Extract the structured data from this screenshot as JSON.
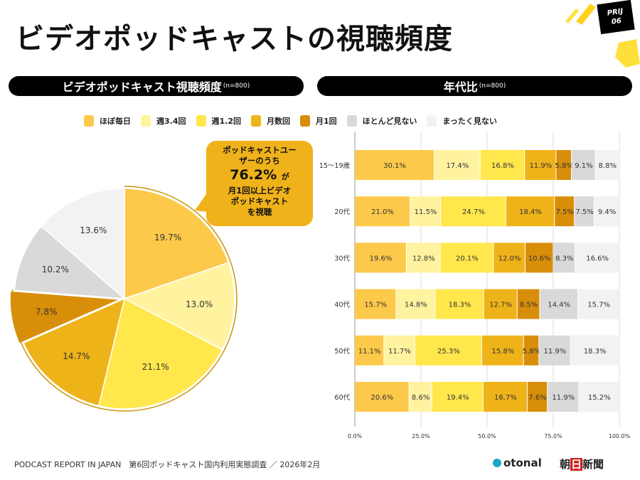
{
  "header": {
    "title": "ビデオポッドキャストの視聴頻度",
    "badge_line1": "PRIJ",
    "badge_line2": "06"
  },
  "left_panel": {
    "title": "ビデオポッドキャスト視聴頻度",
    "n": "(n=800)"
  },
  "right_panel": {
    "title": "年代比",
    "n": "(n=800)"
  },
  "legend": [
    {
      "label": "ほぼ毎日",
      "color": "#FCC94A"
    },
    {
      "label": "週3.4回",
      "color": "#FFF3A0"
    },
    {
      "label": "週1.2回",
      "color": "#FFE74C"
    },
    {
      "label": "月数回",
      "color": "#EFB31A"
    },
    {
      "label": "月1回",
      "color": "#D98E0A"
    },
    {
      "label": "ほとんど見ない",
      "color": "#D9D9D9"
    },
    {
      "label": "まったく見ない",
      "color": "#F2F2F2"
    }
  ],
  "callout": {
    "line1": "ポッドキャストユー",
    "line2": "ザーのうち",
    "value": "76.2%",
    "particle": "が",
    "line3": "月1回以上ビデオ",
    "line4": "ポッドキャスト",
    "line5": "を視聴"
  },
  "chart_data": [
    {
      "type": "pie",
      "categories": [
        "ほぼ毎日",
        "週3.4回",
        "週1.2回",
        "月数回",
        "月1回",
        "ほとんど見ない",
        "まったく見ない"
      ],
      "values": [
        19.7,
        13.0,
        21.1,
        14.7,
        7.8,
        10.2,
        13.6
      ],
      "labels": [
        "19.7%",
        "13.0%",
        "21.1%",
        "14.7%",
        "7.8%",
        "10.2%",
        "13.6%"
      ],
      "exploded": "月1回"
    },
    {
      "type": "bar",
      "orientation": "horizontal-stacked-100",
      "categories": [
        "15〜19歳",
        "20代",
        "30代",
        "40代",
        "50代",
        "60代"
      ],
      "series": [
        {
          "name": "ほぼ毎日",
          "values": [
            30.1,
            21.0,
            19.6,
            15.7,
            11.1,
            20.6
          ]
        },
        {
          "name": "週3.4回",
          "values": [
            17.4,
            11.5,
            12.8,
            14.8,
            11.7,
            8.6
          ]
        },
        {
          "name": "週1.2回",
          "values": [
            16.8,
            24.7,
            20.1,
            18.3,
            25.3,
            19.4
          ]
        },
        {
          "name": "月数回",
          "values": [
            11.9,
            18.4,
            12.0,
            12.7,
            15.8,
            16.7
          ]
        },
        {
          "name": "月1回",
          "values": [
            5.8,
            7.5,
            10.6,
            8.5,
            5.8,
            7.6
          ]
        },
        {
          "name": "ほとんど見ない",
          "values": [
            9.1,
            7.5,
            8.3,
            14.4,
            11.9,
            11.9
          ]
        },
        {
          "name": "まったく見ない",
          "values": [
            8.8,
            9.4,
            16.6,
            15.7,
            18.3,
            15.2
          ]
        }
      ],
      "xticks": [
        "0.0%",
        "25.0%",
        "50.0%",
        "75.0%",
        "100.0%"
      ],
      "xlim": [
        0,
        100
      ],
      "grid": true
    }
  ],
  "footer": {
    "text": "PODCAST REPORT IN JAPAN　第6回ポッドキャスト国内利用実態調査 ／ 2026年2月",
    "logo1": "otonal",
    "logo2_a": "朝",
    "logo2_b": "日",
    "logo2_c": "新聞"
  }
}
